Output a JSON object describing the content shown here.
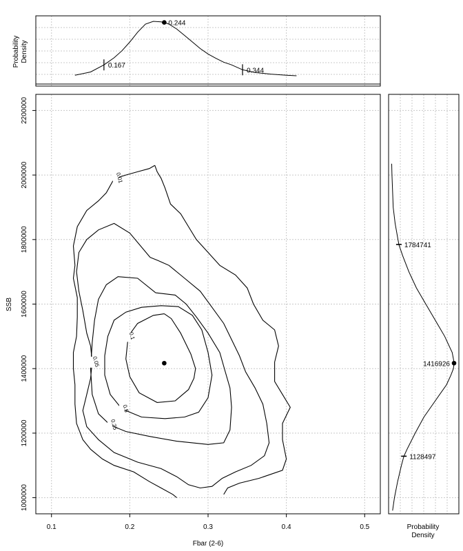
{
  "chart_data": [
    {
      "type": "line",
      "panel": "top marginal",
      "ylabel": "Probability\nDensity",
      "xlim": [
        0.08,
        0.52
      ],
      "grid": true,
      "curve_x": [
        0.13,
        0.15,
        0.167,
        0.18,
        0.19,
        0.2,
        0.21,
        0.22,
        0.23,
        0.24,
        0.244,
        0.25,
        0.26,
        0.27,
        0.28,
        0.29,
        0.3,
        0.31,
        0.32,
        0.33,
        0.344,
        0.36,
        0.38,
        0.4,
        0.413
      ],
      "curve_density": [
        0.01,
        0.07,
        0.2,
        0.33,
        0.46,
        0.62,
        0.8,
        0.95,
        1.0,
        0.99,
        0.98,
        0.95,
        0.86,
        0.74,
        0.62,
        0.5,
        0.4,
        0.32,
        0.25,
        0.2,
        0.11,
        0.06,
        0.03,
        0.01,
        0.0
      ],
      "markers": [
        {
          "value": 0.167,
          "label": "0.167",
          "kind": "quantile"
        },
        {
          "value": 0.244,
          "label": "0.244",
          "kind": "point"
        },
        {
          "value": 0.344,
          "label": "0.344",
          "kind": "quantile"
        }
      ]
    },
    {
      "type": "contour",
      "panel": "joint",
      "xlabel": "Fbar (2-6)",
      "ylabel": "SSB",
      "xlim": [
        0.08,
        0.52
      ],
      "ylim": [
        950000,
        2250000
      ],
      "xticks": [
        "0.1",
        "0.2",
        "0.3",
        "0.4",
        "0.5"
      ],
      "xtick_values": [
        0.1,
        0.2,
        0.3,
        0.4,
        0.5
      ],
      "yticks": [
        "1000000",
        "1200000",
        "1400000",
        "1600000",
        "1800000",
        "2000000",
        "2200000"
      ],
      "ytick_values": [
        1000000,
        1200000,
        1400000,
        1600000,
        1800000,
        2000000,
        2200000
      ],
      "grid": true,
      "point": {
        "x": 0.244,
        "y": 1416926
      },
      "contours": [
        {
          "label": "0.1",
          "points": [
            [
              0.244,
              1570000
            ],
            [
              0.23,
              1565000
            ],
            [
              0.21,
              1540000
            ],
            [
              0.198,
              1500000
            ],
            [
              0.195,
              1430000
            ],
            [
              0.2,
              1375000
            ],
            [
              0.212,
              1325000
            ],
            [
              0.235,
              1295000
            ],
            [
              0.258,
              1300000
            ],
            [
              0.275,
              1335000
            ],
            [
              0.282,
              1370000
            ],
            [
              0.284,
              1400000
            ],
            [
              0.278,
              1445000
            ],
            [
              0.265,
              1510000
            ],
            [
              0.253,
              1555000
            ],
            [
              0.244,
              1570000
            ]
          ]
        },
        {
          "label": "0.5",
          "points": [
            [
              0.24,
              1595000
            ],
            [
              0.215,
              1590000
            ],
            [
              0.195,
              1575000
            ],
            [
              0.18,
              1550000
            ],
            [
              0.172,
              1500000
            ],
            [
              0.168,
              1440000
            ],
            [
              0.168,
              1380000
            ],
            [
              0.175,
              1320000
            ],
            [
              0.19,
              1275000
            ],
            [
              0.215,
              1250000
            ],
            [
              0.245,
              1245000
            ],
            [
              0.27,
              1250000
            ],
            [
              0.288,
              1265000
            ],
            [
              0.3,
              1310000
            ],
            [
              0.305,
              1380000
            ],
            [
              0.3,
              1450000
            ],
            [
              0.292,
              1520000
            ],
            [
              0.28,
              1565000
            ],
            [
              0.262,
              1592000
            ],
            [
              0.24,
              1595000
            ]
          ]
        },
        {
          "label": "0.25",
          "points": [
            [
              0.233,
              1635000
            ],
            [
              0.21,
              1680000
            ],
            [
              0.185,
              1685000
            ],
            [
              0.17,
              1660000
            ],
            [
              0.16,
              1615000
            ],
            [
              0.155,
              1550000
            ],
            [
              0.152,
              1480000
            ],
            [
              0.15,
              1400000
            ],
            [
              0.152,
              1320000
            ],
            [
              0.16,
              1260000
            ],
            [
              0.175,
              1225000
            ],
            [
              0.195,
              1205000
            ],
            [
              0.225,
              1190000
            ],
            [
              0.26,
              1175000
            ],
            [
              0.3,
              1165000
            ],
            [
              0.32,
              1170000
            ],
            [
              0.328,
              1210000
            ],
            [
              0.33,
              1280000
            ],
            [
              0.328,
              1340000
            ],
            [
              0.322,
              1390000
            ],
            [
              0.315,
              1450000
            ],
            [
              0.3,
              1510000
            ],
            [
              0.285,
              1560000
            ],
            [
              0.272,
              1600000
            ],
            [
              0.258,
              1628000
            ],
            [
              0.233,
              1635000
            ]
          ]
        },
        {
          "label": "0.05",
          "points": [
            [
              0.226,
              1745000
            ],
            [
              0.2,
              1820000
            ],
            [
              0.18,
              1850000
            ],
            [
              0.16,
              1830000
            ],
            [
              0.145,
              1800000
            ],
            [
              0.135,
              1760000
            ],
            [
              0.132,
              1700000
            ],
            [
              0.135,
              1640000
            ],
            [
              0.14,
              1580000
            ],
            [
              0.145,
              1510000
            ],
            [
              0.15,
              1470000
            ],
            [
              0.152,
              1420000
            ],
            [
              0.15,
              1370000
            ],
            [
              0.145,
              1320000
            ],
            [
              0.14,
              1270000
            ],
            [
              0.145,
              1220000
            ],
            [
              0.16,
              1180000
            ],
            [
              0.18,
              1140000
            ],
            [
              0.21,
              1110000
            ],
            [
              0.24,
              1090000
            ],
            [
              0.26,
              1065000
            ],
            [
              0.275,
              1040000
            ],
            [
              0.29,
              1030000
            ],
            [
              0.305,
              1035000
            ],
            [
              0.318,
              1060000
            ],
            [
              0.335,
              1080000
            ],
            [
              0.355,
              1100000
            ],
            [
              0.372,
              1130000
            ],
            [
              0.378,
              1170000
            ],
            [
              0.375,
              1230000
            ],
            [
              0.37,
              1290000
            ],
            [
              0.36,
              1340000
            ],
            [
              0.348,
              1390000
            ],
            [
              0.34,
              1440000
            ],
            [
              0.33,
              1490000
            ],
            [
              0.32,
              1540000
            ],
            [
              0.305,
              1590000
            ],
            [
              0.29,
              1640000
            ],
            [
              0.27,
              1680000
            ],
            [
              0.25,
              1720000
            ],
            [
              0.236,
              1735000
            ],
            [
              0.226,
              1745000
            ]
          ]
        },
        {
          "label": "0.01",
          "points": [
            [
              0.232,
              2030000
            ],
            [
              0.225,
              2020000
            ],
            [
              0.21,
              2010000
            ],
            [
              0.195,
              2000000
            ],
            [
              0.182,
              1990000
            ],
            [
              0.178,
              1980000
            ],
            [
              0.17,
              1945000
            ],
            [
              0.16,
              1920000
            ],
            [
              0.145,
              1890000
            ],
            [
              0.133,
              1840000
            ],
            [
              0.128,
              1780000
            ],
            [
              0.13,
              1720000
            ],
            [
              0.128,
              1680000
            ],
            [
              0.133,
              1620000
            ],
            [
              0.133,
              1560000
            ],
            [
              0.132,
              1500000
            ],
            [
              0.128,
              1450000
            ],
            [
              0.128,
              1400000
            ],
            [
              0.13,
              1350000
            ],
            [
              0.13,
              1290000
            ],
            [
              0.132,
              1230000
            ],
            [
              0.14,
              1180000
            ],
            [
              0.15,
              1150000
            ],
            [
              0.165,
              1120000
            ],
            [
              0.18,
              1100000
            ],
            [
              0.205,
              1080000
            ],
            [
              0.225,
              1050000
            ],
            [
              0.24,
              1030000
            ],
            [
              0.255,
              1010000
            ],
            [
              0.26,
              1000000
            ]
          ]
        },
        {
          "label": "",
          "points": [
            [
              0.32,
              1010000
            ],
            [
              0.325,
              1030000
            ],
            [
              0.34,
              1045000
            ],
            [
              0.365,
              1060000
            ],
            [
              0.395,
              1085000
            ],
            [
              0.4,
              1120000
            ],
            [
              0.395,
              1180000
            ],
            [
              0.395,
              1230000
            ],
            [
              0.405,
              1280000
            ],
            [
              0.395,
              1320000
            ],
            [
              0.385,
              1360000
            ],
            [
              0.385,
              1420000
            ],
            [
              0.39,
              1470000
            ],
            [
              0.385,
              1520000
            ],
            [
              0.37,
              1550000
            ],
            [
              0.358,
              1600000
            ],
            [
              0.35,
              1650000
            ],
            [
              0.335,
              1690000
            ],
            [
              0.315,
              1720000
            ],
            [
              0.3,
              1760000
            ],
            [
              0.285,
              1800000
            ],
            [
              0.275,
              1840000
            ],
            [
              0.265,
              1880000
            ],
            [
              0.252,
              1910000
            ],
            [
              0.245,
              1960000
            ],
            [
              0.24,
              1990000
            ],
            [
              0.235,
              2010000
            ],
            [
              0.232,
              2030000
            ]
          ]
        }
      ]
    },
    {
      "type": "line",
      "panel": "right marginal",
      "xlabel": "Probability\nDensity",
      "ylim": [
        950000,
        2250000
      ],
      "grid": true,
      "curve_y": [
        960000,
        1000000,
        1050000,
        1100000,
        1128497,
        1150000,
        1200000,
        1250000,
        1300000,
        1350000,
        1380000,
        1400000,
        1416926,
        1430000,
        1450000,
        1500000,
        1550000,
        1600000,
        1650000,
        1700000,
        1750000,
        1784741,
        1850000,
        1900000,
        1950000,
        2000000,
        2035000
      ],
      "curve_density": [
        0.02,
        0.05,
        0.1,
        0.16,
        0.2,
        0.25,
        0.38,
        0.52,
        0.7,
        0.88,
        0.95,
        0.99,
        1.0,
        0.99,
        0.97,
        0.85,
        0.7,
        0.55,
        0.4,
        0.28,
        0.18,
        0.12,
        0.06,
        0.03,
        0.02,
        0.01,
        0.005
      ],
      "markers": [
        {
          "value": 1128497,
          "label": "1128497",
          "kind": "quantile"
        },
        {
          "value": 1416926,
          "label": "1416926",
          "kind": "point"
        },
        {
          "value": 1784741,
          "label": "1784741",
          "kind": "quantile"
        }
      ]
    }
  ]
}
